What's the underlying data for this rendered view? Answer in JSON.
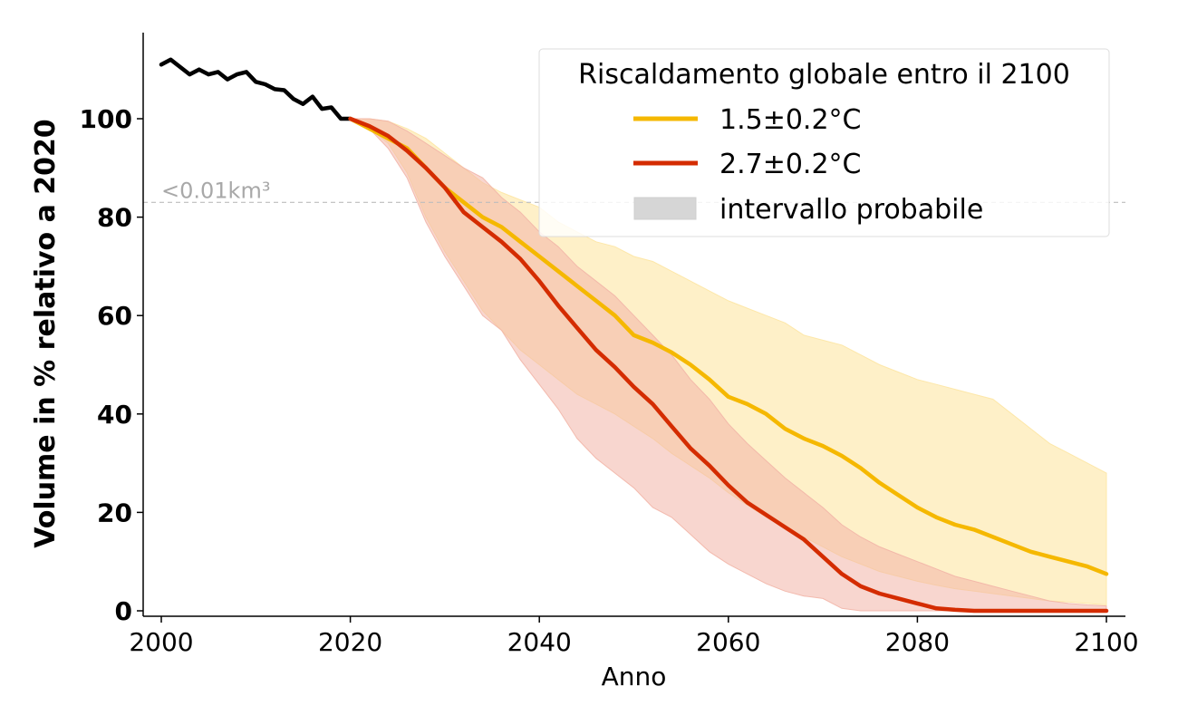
{
  "chart_data": {
    "type": "line",
    "title": "",
    "xlabel": "Anno",
    "ylabel": "Volume in % relativo a 2020",
    "xlim": [
      1998,
      2102
    ],
    "ylim": [
      -1,
      117
    ],
    "x_ticks": [
      2000,
      2020,
      2040,
      2060,
      2080,
      2100
    ],
    "y_ticks": [
      0,
      20,
      40,
      60,
      80,
      100
    ],
    "x_tick_labels": [
      "2000",
      "2020",
      "2040",
      "2060",
      "2080",
      "2100"
    ],
    "y_tick_labels": [
      "0",
      "20",
      "40",
      "60",
      "80",
      "100"
    ],
    "grid": false,
    "legend_position": "top-right",
    "legend_title": "Riscaldamento globale entro il 2100",
    "threshold": {
      "value": 83,
      "label": "<0.01km³",
      "color": "#bdbdbd"
    },
    "historical": {
      "color": "#000000",
      "x": [
        2000,
        2001,
        2002,
        2003,
        2004,
        2005,
        2006,
        2007,
        2008,
        2009,
        2010,
        2011,
        2012,
        2013,
        2014,
        2015,
        2016,
        2017,
        2018,
        2019,
        2020
      ],
      "y": [
        111,
        112,
        110.5,
        109,
        110,
        109,
        109.5,
        108,
        109,
        109.5,
        107.5,
        107,
        106,
        105.8,
        104,
        103,
        104.5,
        102,
        102.3,
        100,
        100
      ]
    },
    "series": [
      {
        "name": "1.5±0.2°C",
        "color": "#f5b800",
        "band_color": "#fde6a3",
        "x": [
          2020,
          2022,
          2024,
          2026,
          2028,
          2030,
          2032,
          2034,
          2036,
          2038,
          2040,
          2042,
          2044,
          2046,
          2048,
          2050,
          2052,
          2054,
          2056,
          2058,
          2060,
          2062,
          2064,
          2066,
          2068,
          2070,
          2072,
          2074,
          2076,
          2078,
          2080,
          2082,
          2084,
          2086,
          2088,
          2090,
          2092,
          2094,
          2096,
          2098,
          2100
        ],
        "y": [
          100,
          98,
          96,
          94,
          90,
          86,
          83,
          80,
          78,
          75,
          72,
          69,
          66,
          63,
          60,
          56,
          54.5,
          52.5,
          50,
          47,
          43.5,
          42,
          40,
          37,
          35,
          33.5,
          31.5,
          29,
          26,
          23.5,
          21,
          19,
          17.5,
          16.5,
          15,
          13.5,
          12,
          11,
          10,
          9,
          7.5
        ],
        "lower": [
          100,
          98,
          95,
          89,
          80,
          73,
          67,
          61,
          57,
          53,
          50,
          47,
          44,
          42,
          40,
          37.5,
          35,
          32,
          29.5,
          27,
          24,
          21.5,
          19,
          17,
          15,
          13,
          11,
          9.5,
          8,
          7,
          6,
          5.2,
          4.5,
          4,
          3.5,
          3,
          2.5,
          2,
          1.8,
          1.5,
          1.2
        ],
        "upper": [
          100,
          100,
          99.5,
          98,
          96,
          93,
          90,
          87,
          85,
          83.5,
          82,
          79,
          77,
          75,
          74,
          72,
          71,
          69,
          67,
          65,
          63,
          61.5,
          60,
          58.5,
          56,
          55,
          54,
          52,
          50,
          48.5,
          47,
          46,
          45,
          44,
          43,
          40,
          37,
          34,
          32,
          30,
          28
        ]
      },
      {
        "name": "2.7±0.2°C",
        "color": "#d42c00",
        "band_color": "#f2b5a7",
        "x": [
          2020,
          2022,
          2024,
          2026,
          2028,
          2030,
          2032,
          2034,
          2036,
          2038,
          2040,
          2042,
          2044,
          2046,
          2048,
          2050,
          2052,
          2054,
          2056,
          2058,
          2060,
          2062,
          2064,
          2066,
          2068,
          2070,
          2072,
          2074,
          2076,
          2078,
          2080,
          2082,
          2084,
          2086,
          2088,
          2090,
          2092,
          2094,
          2096,
          2098,
          2100
        ],
        "y": [
          100,
          98.5,
          96.5,
          93.5,
          90,
          86,
          81,
          78,
          75,
          71.5,
          67,
          62,
          57.5,
          53,
          49.5,
          45.5,
          42,
          37.5,
          33,
          29.5,
          25.5,
          22,
          19.5,
          17,
          14.5,
          11,
          7.5,
          5,
          3.5,
          2.5,
          1.5,
          0.5,
          0.2,
          0,
          0,
          0,
          0,
          0,
          0,
          0,
          0
        ],
        "lower": [
          100,
          98,
          94,
          88,
          79,
          72,
          66,
          60,
          57,
          51,
          46,
          41,
          35,
          31,
          28,
          25,
          21,
          19,
          15.5,
          12,
          9.5,
          7.5,
          5.5,
          4,
          3,
          2.5,
          0.5,
          0,
          0,
          0,
          0,
          0,
          0,
          0,
          0,
          0,
          0,
          0,
          0,
          0,
          0
        ],
        "upper": [
          100,
          100,
          99.5,
          97.5,
          95,
          92.5,
          90,
          88,
          84,
          81,
          77,
          74,
          70,
          67,
          64,
          60,
          56,
          52,
          47,
          43,
          38,
          34,
          30.5,
          27,
          24,
          21,
          17.5,
          15,
          13,
          11.5,
          10,
          8.5,
          7,
          6,
          5,
          4,
          3,
          2,
          1.5,
          1.2,
          1
        ]
      }
    ],
    "band_legend_label": "intervallo probabile",
    "band_legend_color": "#d6d6d6"
  }
}
